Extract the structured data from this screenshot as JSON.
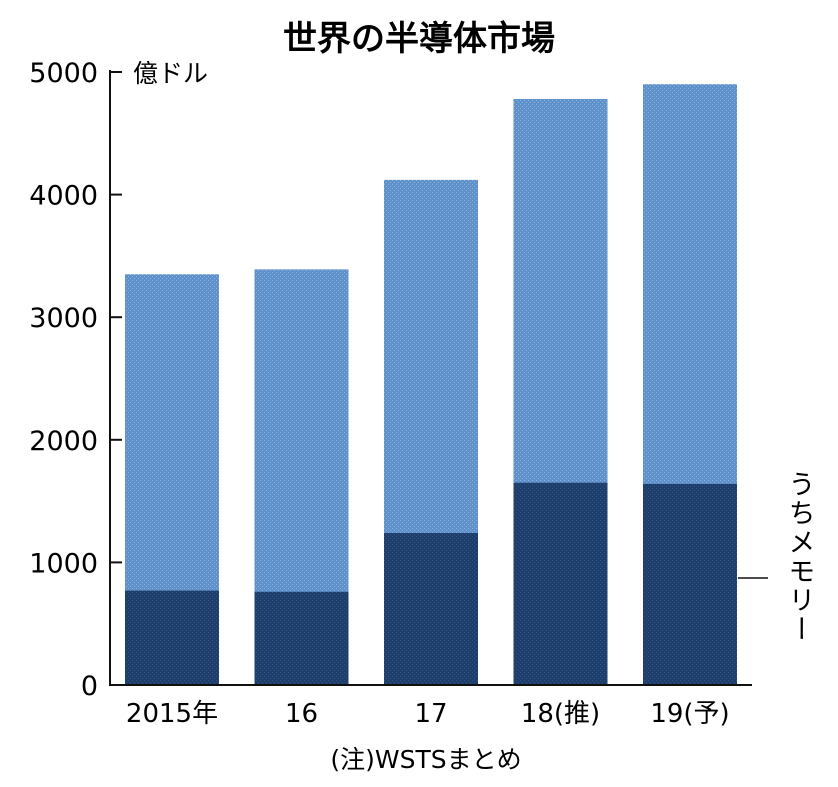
{
  "chart_data": {
    "type": "bar",
    "title": "世界の半導体市場",
    "unit_label": "億ドル",
    "categories": [
      "2015年",
      "16",
      "17",
      "18(推)",
      "19(予)"
    ],
    "series": [
      {
        "name": "うちメモリー",
        "values": [
          770,
          760,
          1240,
          1650,
          1640
        ],
        "color": "#1e3f6b"
      },
      {
        "name": "",
        "values": [
          3350,
          3390,
          4120,
          4780,
          4900
        ],
        "color": "#5f91cb"
      }
    ],
    "y_ticks": [
      "0",
      "1000",
      "2000",
      "3000",
      "4000",
      "5000"
    ],
    "ylim": [
      0,
      5000
    ],
    "grid": false,
    "memory_label": "うちメモリー",
    "note": "(注)WSTSまとめ"
  }
}
